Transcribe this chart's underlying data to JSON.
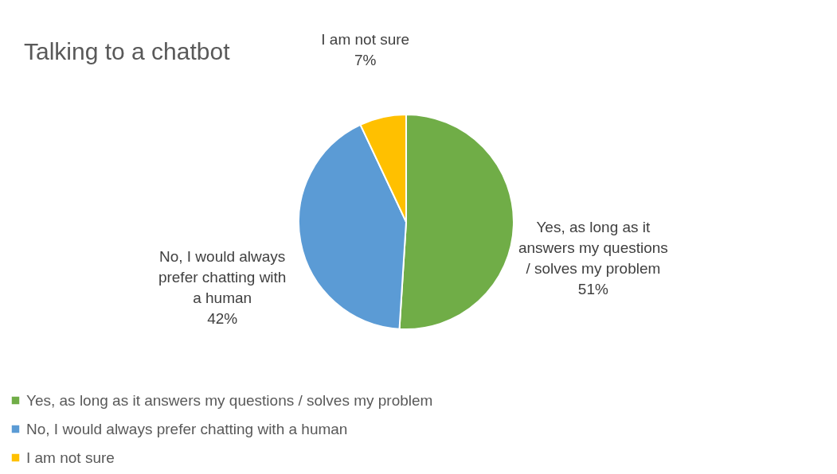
{
  "chart_data": {
    "type": "pie",
    "title": "Talking to a chatbot",
    "categories": [
      "Yes, as long as it answers my questions / solves my problem",
      "No, I would always prefer chatting with a human",
      "I am not sure"
    ],
    "values": [
      51,
      42,
      7
    ],
    "value_labels": [
      "51%",
      "42%",
      "7%"
    ],
    "colors": [
      "#70ad47",
      "#5b9bd5",
      "#ffc000"
    ],
    "legend": "bottom"
  }
}
